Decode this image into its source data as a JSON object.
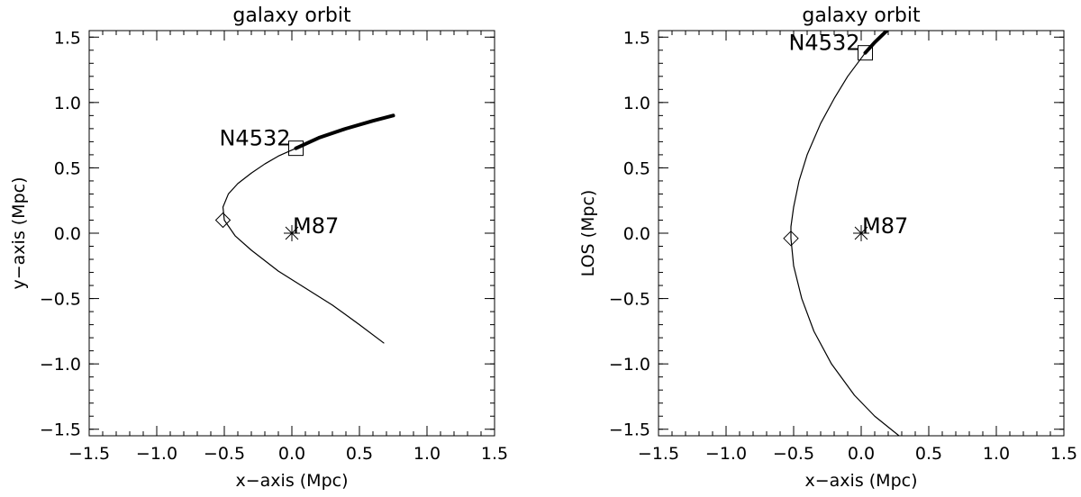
{
  "chart_data": [
    {
      "type": "line",
      "title": "galaxy orbit",
      "xlabel": "x−axis (Mpc)",
      "ylabel": "y−axis (Mpc)",
      "xlim": [
        -1.5,
        1.5
      ],
      "ylim": [
        -1.55,
        1.55
      ],
      "xticks": [
        -1.5,
        -1.0,
        -0.5,
        0.0,
        0.5,
        1.0,
        1.5
      ],
      "xtick_labels": [
        "−1.5",
        "−1.0",
        "−0.5",
        "0.0",
        "0.5",
        "1.0",
        "1.5"
      ],
      "yticks": [
        -1.5,
        -1.0,
        -0.5,
        0.0,
        0.5,
        1.0,
        1.5
      ],
      "ytick_labels": [
        "−1.5",
        "−1.0",
        "−0.5",
        "0.0",
        "0.5",
        "1.0",
        "1.5"
      ],
      "series": [
        {
          "style": "thin",
          "x": [
            0.68,
            0.5,
            0.3,
            0.1,
            -0.1,
            -0.3,
            -0.42,
            -0.5,
            -0.51,
            -0.47,
            -0.4,
            -0.3,
            -0.2,
            -0.1,
            0.03
          ],
          "y": [
            -0.84,
            -0.7,
            -0.55,
            -0.42,
            -0.29,
            -0.13,
            -0.02,
            0.1,
            0.2,
            0.3,
            0.38,
            0.46,
            0.53,
            0.59,
            0.65
          ]
        },
        {
          "style": "thick",
          "x": [
            0.03,
            0.2,
            0.4,
            0.6,
            0.75
          ],
          "y": [
            0.65,
            0.73,
            0.8,
            0.86,
            0.9
          ]
        }
      ],
      "markers": [
        {
          "shape": "square",
          "x": 0.03,
          "y": 0.65,
          "label": "N4532",
          "label_side": "left"
        },
        {
          "shape": "diamond",
          "x": -0.51,
          "y": 0.1,
          "label": ""
        },
        {
          "shape": "asterisk",
          "x": 0.0,
          "y": 0.0,
          "label": "M87",
          "label_side": "right"
        }
      ]
    },
    {
      "type": "line",
      "title": "galaxy orbit",
      "xlabel": "x−axis (Mpc)",
      "ylabel": "LOS (Mpc)",
      "xlim": [
        -1.5,
        1.5
      ],
      "ylim": [
        -1.55,
        1.55
      ],
      "xticks": [
        -1.5,
        -1.0,
        -0.5,
        0.0,
        0.5,
        1.0,
        1.5
      ],
      "xtick_labels": [
        "−1.5",
        "−1.0",
        "−0.5",
        "0.0",
        "0.5",
        "1.0",
        "1.5"
      ],
      "yticks": [
        -1.5,
        -1.0,
        -0.5,
        0.0,
        0.5,
        1.0,
        1.5
      ],
      "ytick_labels": [
        "−1.5",
        "−1.0",
        "−0.5",
        "0.0",
        "0.5",
        "1.0",
        "1.5"
      ],
      "series": [
        {
          "style": "thin",
          "x": [
            0.03,
            -0.1,
            -0.2,
            -0.3,
            -0.4,
            -0.46,
            -0.5,
            -0.52,
            -0.52,
            -0.5,
            -0.44,
            -0.35,
            -0.22,
            -0.05,
            0.1,
            0.28
          ],
          "y": [
            1.38,
            1.2,
            1.03,
            0.84,
            0.6,
            0.4,
            0.2,
            0.05,
            -0.04,
            -0.25,
            -0.5,
            -0.75,
            -1.0,
            -1.24,
            -1.4,
            -1.55
          ]
        },
        {
          "style": "thick",
          "x": [
            0.03,
            0.1,
            0.2
          ],
          "y": [
            1.38,
            1.46,
            1.56
          ]
        }
      ],
      "markers": [
        {
          "shape": "square",
          "x": 0.03,
          "y": 1.38,
          "label": "N4532",
          "label_side": "left"
        },
        {
          "shape": "diamond",
          "x": -0.52,
          "y": -0.04,
          "label": ""
        },
        {
          "shape": "asterisk",
          "x": 0.0,
          "y": 0.0,
          "label": "M87",
          "label_side": "right"
        }
      ]
    }
  ]
}
